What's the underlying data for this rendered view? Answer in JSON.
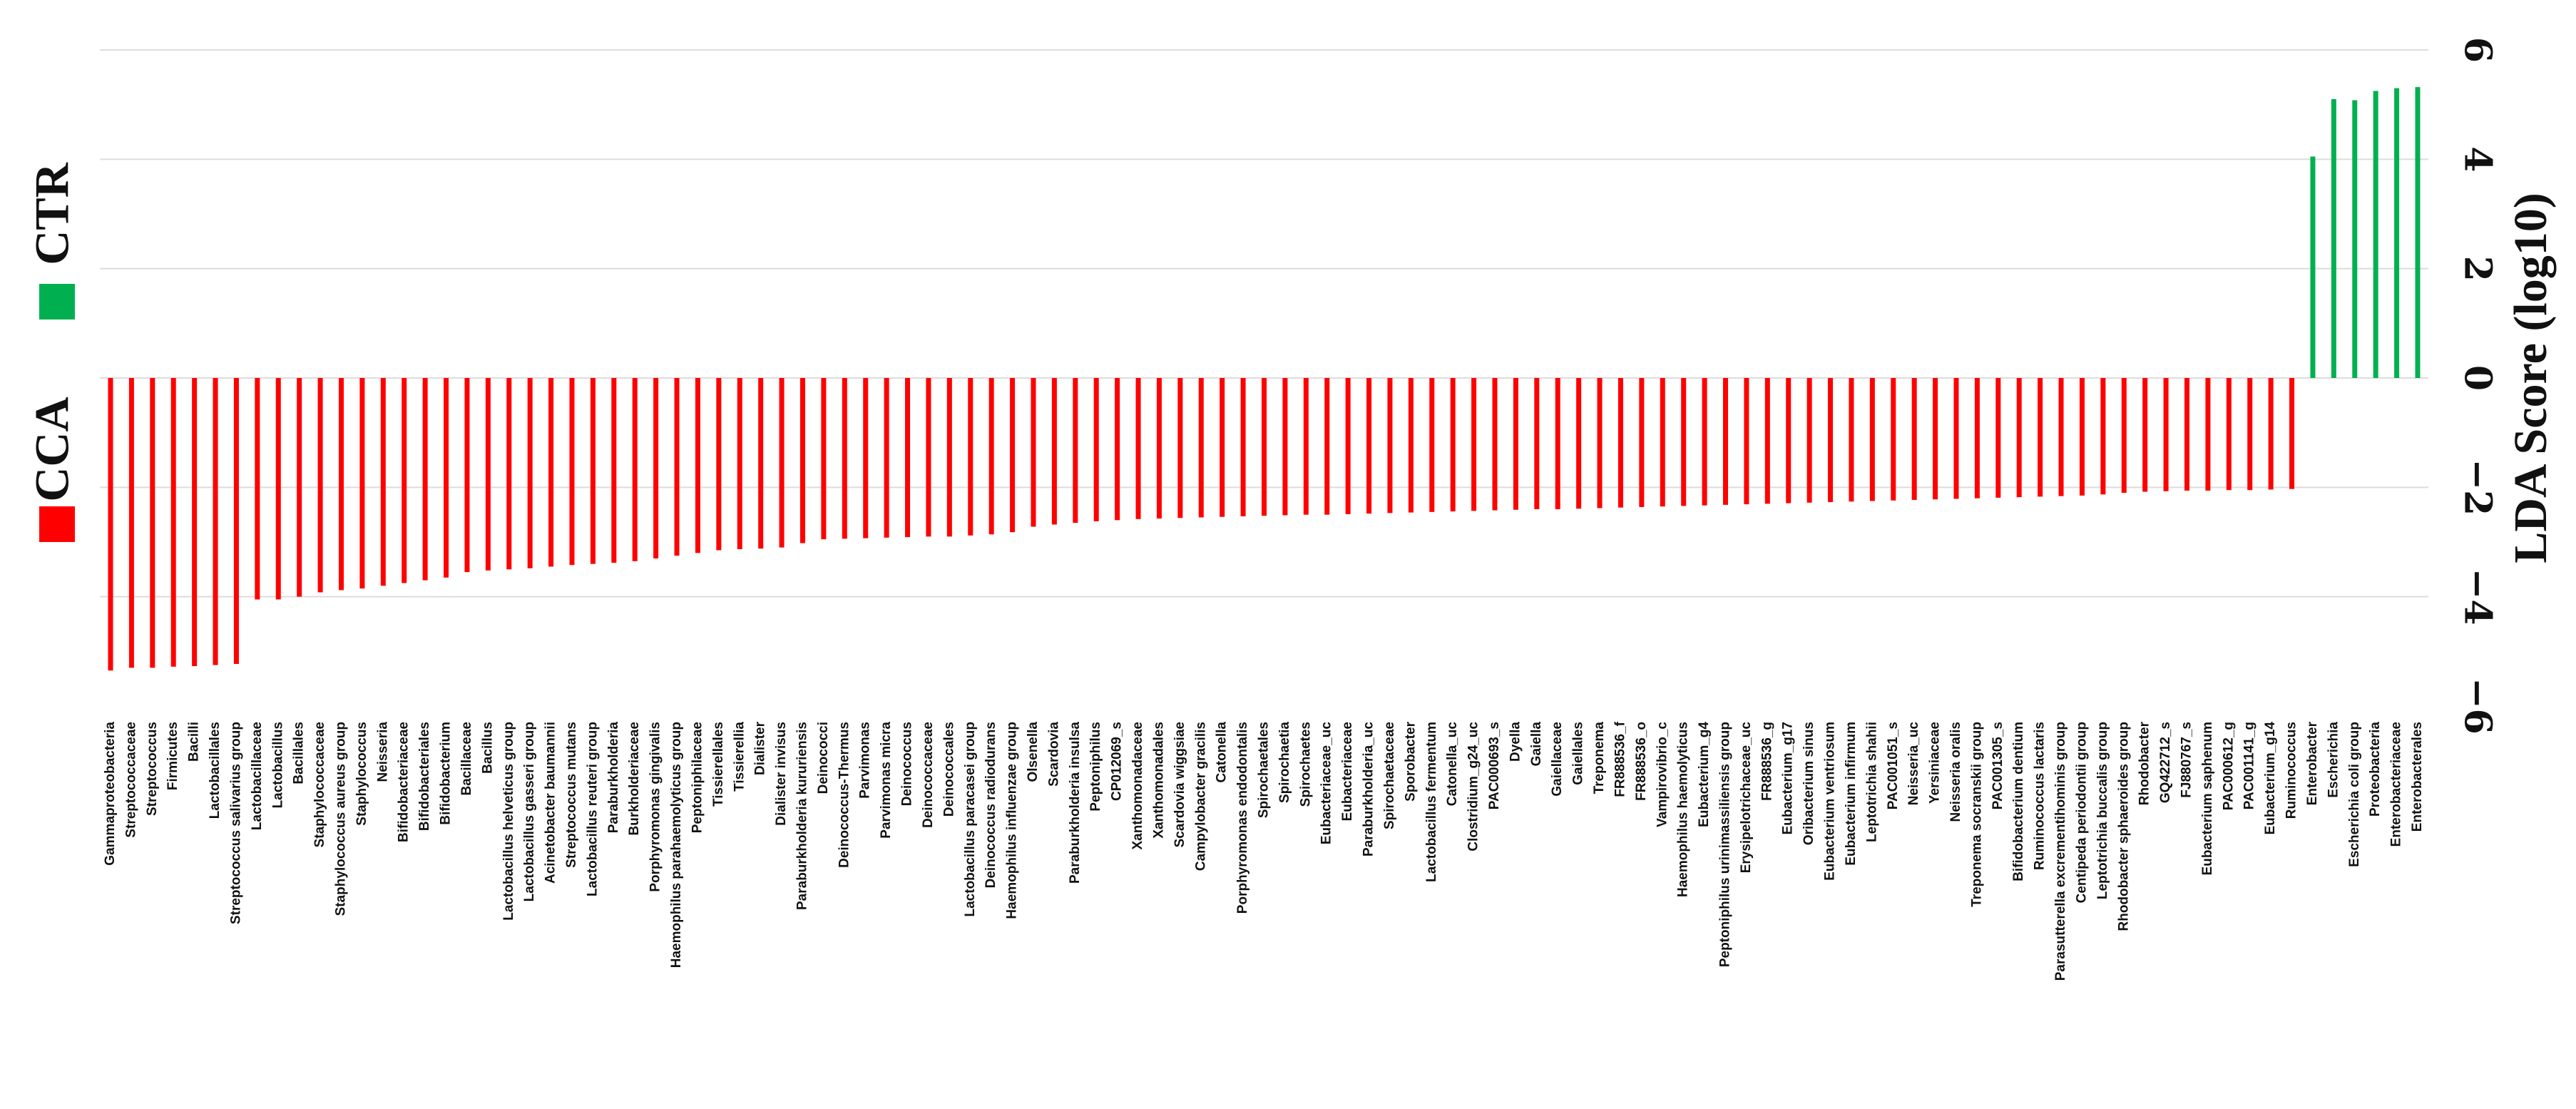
{
  "chart_data": {
    "type": "bar",
    "orientation": "vertical",
    "ylabel": "LDA Score (log10)",
    "ylim": [
      -6,
      6
    ],
    "yticks": [
      -6,
      -4,
      -2,
      0,
      2,
      4,
      6
    ],
    "ytick_labels": [
      "−6",
      "−4",
      "−2",
      "0",
      "2",
      "4",
      "6"
    ],
    "grid": true,
    "axis_side": "right",
    "label_rotation": "vertical",
    "legend": {
      "placement": "left",
      "entries": [
        {
          "label": "CTR",
          "color": "#00b050"
        },
        {
          "label": "CCA",
          "color": "#ff0000"
        }
      ]
    },
    "series": [
      {
        "name": "CCA",
        "color": "#ff0000"
      },
      {
        "name": "CTR",
        "color": "#00b050"
      }
    ],
    "categories": [
      "Gammaproteobacteria",
      "Streptococcaceae",
      "Streptococcus",
      "Firmicutes",
      "Bacilli",
      "Lactobacillales",
      "Streptococcus salivarius group",
      "Lactobacillaceae",
      "Lactobacillus",
      "Bacillales",
      "Staphylococcaceae",
      "Staphylococcus aureus group",
      "Staphylococcus",
      "Neisseria",
      "Bifidobacteriaceae",
      "Bifidobacteriales",
      "Bifidobacterium",
      "Bacillaceae",
      "Bacillus",
      "Lactobacillus helveticus group",
      "Lactobacillus gasseri group",
      "Acinetobacter baumannii",
      "Streptococcus mutans",
      "Lactobacillus reuteri group",
      "Paraburkholderia",
      "Burkholderiaceae",
      "Porphyromonas gingivalis",
      "Haemophilus parahaemolyticus group",
      "Peptoniphilaceae",
      "Tissierellales",
      "Tissierellia",
      "Dialister",
      "Dialister invisus",
      "Paraburkholderia kururiensis",
      "Deinococci",
      "Deinococcus-Thermus",
      "Parvimonas",
      "Parvimonas micra",
      "Deinococcus",
      "Deinococcaceae",
      "Deinococcales",
      "Lactobacillus paracasei group",
      "Deinococcus radiodurans",
      "Haemophilus influenzae group",
      "Olsenella",
      "Scardovia",
      "Paraburkholderia insulsa",
      "Peptoniphilus",
      "CP012069_s",
      "Xanthomonadaceae",
      "Xanthomonadales",
      "Scardovia wiggsiae",
      "Campylobacter gracilis",
      "Catonella",
      "Porphyromonas endodontalis",
      "Spirochaetales",
      "Spirochaetia",
      "Spirochaetes",
      "Eubacteriaceae_uc",
      "Eubacteriaceae",
      "Paraburkholderia_uc",
      "Spirochaetaceae",
      "Sporobacter",
      "Lactobacillus fermentum",
      "Catonella_uc",
      "Clostridium_g24_uc",
      "PAC000693_s",
      "Dyella",
      "Gaiella",
      "Gaiellaceae",
      "Gaiellales",
      "Treponema",
      "FR888536_f",
      "FR888536_o",
      "Vampirovibrio_c",
      "Haemophilus haemolyticus",
      "Eubacterium_g4",
      "Peptoniphilus urinimassiliensis group",
      "Erysipelotrichaceae_uc",
      "FR888536_g",
      "Eubacterium_g17",
      "Oribacterium sinus",
      "Eubacterium ventriosum",
      "Eubacterium infirmum",
      "Leptotrichia shahii",
      "PAC001051_s",
      "Neisseria_uc",
      "Yersiniaceae",
      "Neisseria oralis",
      "Treponema socranskii group",
      "PAC001305_s",
      "Bifidobacterium dentium",
      "Ruminococcus lactaris",
      "Parasutterella excrementihominis group",
      "Centipeda periodontii group",
      "Leptotrichia buccalis group",
      "Rhodobacter sphaeroides group",
      "Rhodobacter",
      "GQ422712_s",
      "FJ880767_s",
      "Eubacterium saphenum",
      "PAC000612_g",
      "PAC001141_g",
      "Eubacterium_g14",
      "Ruminococcus",
      "Enterobacter",
      "Escherichia",
      "Escherichia coli group",
      "Proteobacteria",
      "Enterobacteriaceae",
      "Enterobacterales"
    ],
    "values": [
      -5.35,
      -5.3,
      -5.3,
      -5.28,
      -5.27,
      -5.25,
      -5.23,
      -4.05,
      -4.05,
      -4.0,
      -3.92,
      -3.88,
      -3.85,
      -3.8,
      -3.75,
      -3.7,
      -3.65,
      -3.55,
      -3.52,
      -3.5,
      -3.48,
      -3.45,
      -3.42,
      -3.4,
      -3.38,
      -3.35,
      -3.3,
      -3.25,
      -3.2,
      -3.15,
      -3.13,
      -3.12,
      -3.1,
      -3.02,
      -2.95,
      -2.94,
      -2.93,
      -2.92,
      -2.91,
      -2.9,
      -2.9,
      -2.88,
      -2.86,
      -2.82,
      -2.72,
      -2.68,
      -2.65,
      -2.62,
      -2.6,
      -2.58,
      -2.57,
      -2.56,
      -2.55,
      -2.54,
      -2.53,
      -2.52,
      -2.51,
      -2.5,
      -2.5,
      -2.49,
      -2.48,
      -2.47,
      -2.46,
      -2.45,
      -2.44,
      -2.43,
      -2.42,
      -2.41,
      -2.4,
      -2.4,
      -2.39,
      -2.38,
      -2.37,
      -2.36,
      -2.35,
      -2.34,
      -2.33,
      -2.32,
      -2.31,
      -2.3,
      -2.29,
      -2.28,
      -2.27,
      -2.26,
      -2.25,
      -2.24,
      -2.23,
      -2.22,
      -2.21,
      -2.2,
      -2.19,
      -2.18,
      -2.17,
      -2.16,
      -2.15,
      -2.13,
      -2.1,
      -2.08,
      -2.07,
      -2.06,
      -2.06,
      -2.05,
      -2.05,
      -2.04,
      -2.03,
      4.05,
      5.1,
      5.08,
      5.25,
      5.3,
      5.32
    ],
    "colors": [
      "#ff0000",
      "#ff0000",
      "#ff0000",
      "#ff0000",
      "#ff0000",
      "#ff0000",
      "#ff0000",
      "#ff0000",
      "#ff0000",
      "#ff0000",
      "#ff0000",
      "#ff0000",
      "#ff0000",
      "#ff0000",
      "#ff0000",
      "#ff0000",
      "#ff0000",
      "#ff0000",
      "#ff0000",
      "#ff0000",
      "#ff0000",
      "#ff0000",
      "#ff0000",
      "#ff0000",
      "#ff0000",
      "#ff0000",
      "#ff0000",
      "#ff0000",
      "#ff0000",
      "#ff0000",
      "#ff0000",
      "#ff0000",
      "#ff0000",
      "#ff0000",
      "#ff0000",
      "#ff0000",
      "#ff0000",
      "#ff0000",
      "#ff0000",
      "#ff0000",
      "#ff0000",
      "#ff0000",
      "#ff0000",
      "#ff0000",
      "#ff0000",
      "#ff0000",
      "#ff0000",
      "#ff0000",
      "#ff0000",
      "#ff0000",
      "#ff0000",
      "#ff0000",
      "#ff0000",
      "#ff0000",
      "#ff0000",
      "#ff0000",
      "#ff0000",
      "#ff0000",
      "#ff0000",
      "#ff0000",
      "#ff0000",
      "#ff0000",
      "#ff0000",
      "#ff0000",
      "#ff0000",
      "#ff0000",
      "#ff0000",
      "#ff0000",
      "#ff0000",
      "#ff0000",
      "#ff0000",
      "#ff0000",
      "#ff0000",
      "#ff0000",
      "#ff0000",
      "#ff0000",
      "#ff0000",
      "#ff0000",
      "#ff0000",
      "#ff0000",
      "#ff0000",
      "#ff0000",
      "#ff0000",
      "#ff0000",
      "#ff0000",
      "#ff0000",
      "#ff0000",
      "#ff0000",
      "#ff0000",
      "#ff0000",
      "#ff0000",
      "#ff0000",
      "#ff0000",
      "#ff0000",
      "#ff0000",
      "#ff0000",
      "#ff0000",
      "#ff0000",
      "#ff0000",
      "#ff0000",
      "#ff0000",
      "#ff0000",
      "#ff0000",
      "#ff0000",
      "#ff0000",
      "#00b050",
      "#00b050",
      "#00b050",
      "#00b050",
      "#00b050",
      "#00b050"
    ]
  }
}
